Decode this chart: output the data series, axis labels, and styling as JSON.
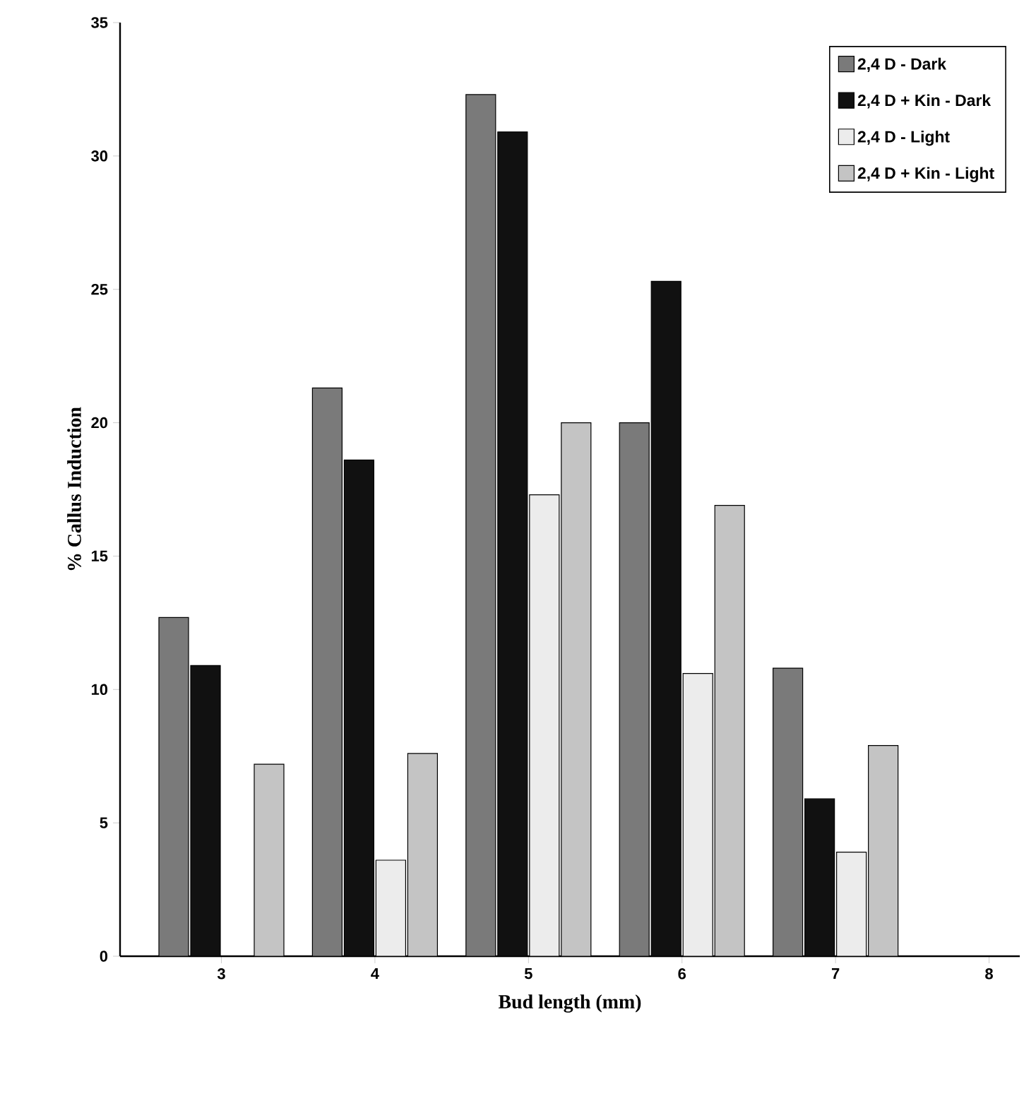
{
  "chart_data": {
    "type": "bar",
    "xlabel": "Bud length (mm)",
    "ylabel": "% Callus Induction",
    "categories": [
      "3",
      "4",
      "5",
      "6",
      "7",
      "8"
    ],
    "series": [
      {
        "name": "2,4 D - Dark",
        "color": "#7a7a7a",
        "values": [
          12.7,
          21.3,
          32.3,
          20.0,
          10.8,
          0
        ]
      },
      {
        "name": "2,4 D + Kin - Dark",
        "color": "#111111",
        "values": [
          10.9,
          18.6,
          30.9,
          25.3,
          5.9,
          0
        ]
      },
      {
        "name": "2,4 D - Light",
        "color": "#ececec",
        "values": [
          0,
          3.6,
          17.3,
          10.6,
          3.9,
          0
        ]
      },
      {
        "name": "2,4 D + Kin - Light",
        "color": "#c4c4c4",
        "values": [
          7.2,
          7.6,
          20.0,
          16.9,
          7.9,
          0
        ]
      }
    ],
    "ylim": [
      0,
      35
    ],
    "yticks": [
      0,
      5,
      10,
      15,
      20,
      25,
      30,
      35
    ],
    "legend": "top right"
  }
}
